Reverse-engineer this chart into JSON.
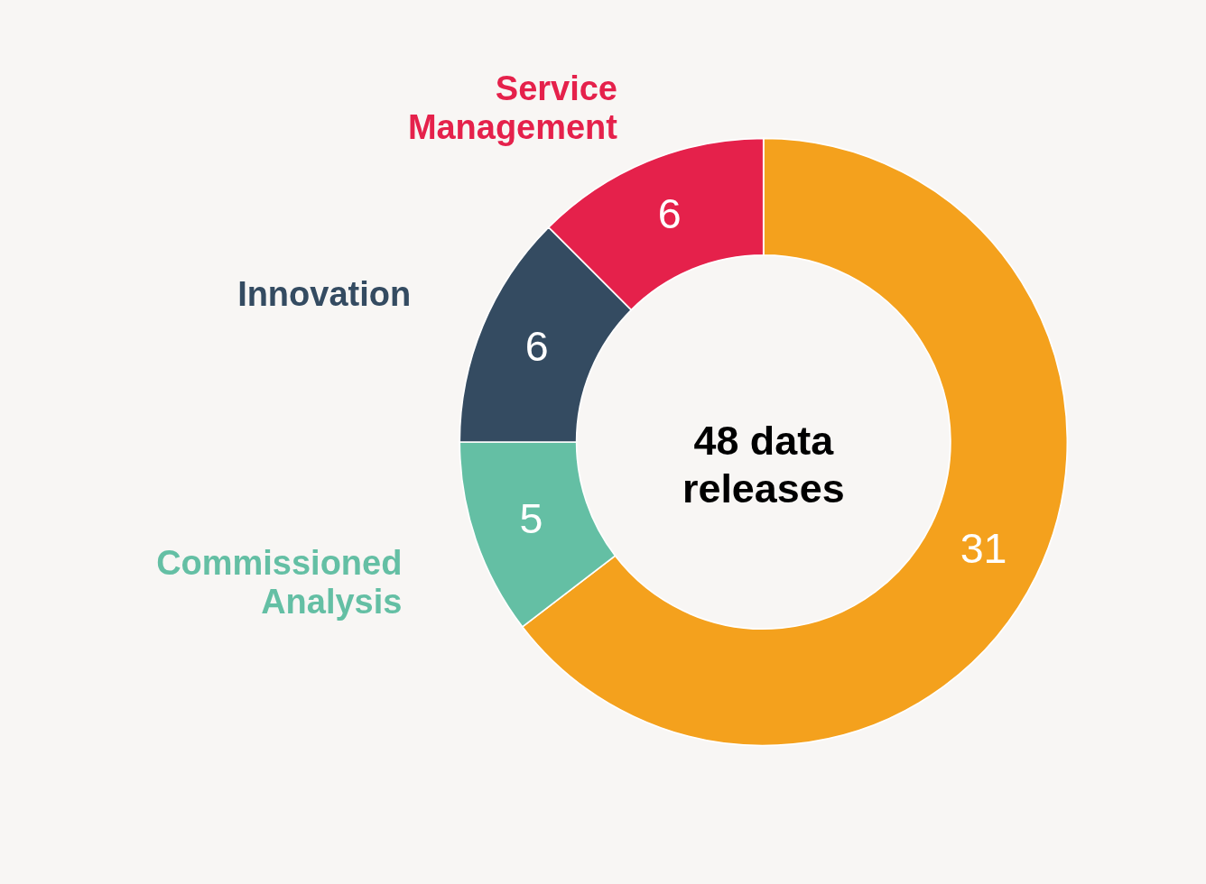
{
  "chart_data": {
    "type": "donut",
    "categories": [
      null,
      "Commissioned Analysis",
      "Innovation",
      "Service Management"
    ],
    "values": [
      31,
      5,
      6,
      6
    ],
    "colors": [
      "#f4a11d",
      "#64bfa4",
      "#344b61",
      "#e5214b"
    ],
    "data_labels": true,
    "legend": false,
    "annotations": [
      "48 data\nreleases"
    ]
  }
}
